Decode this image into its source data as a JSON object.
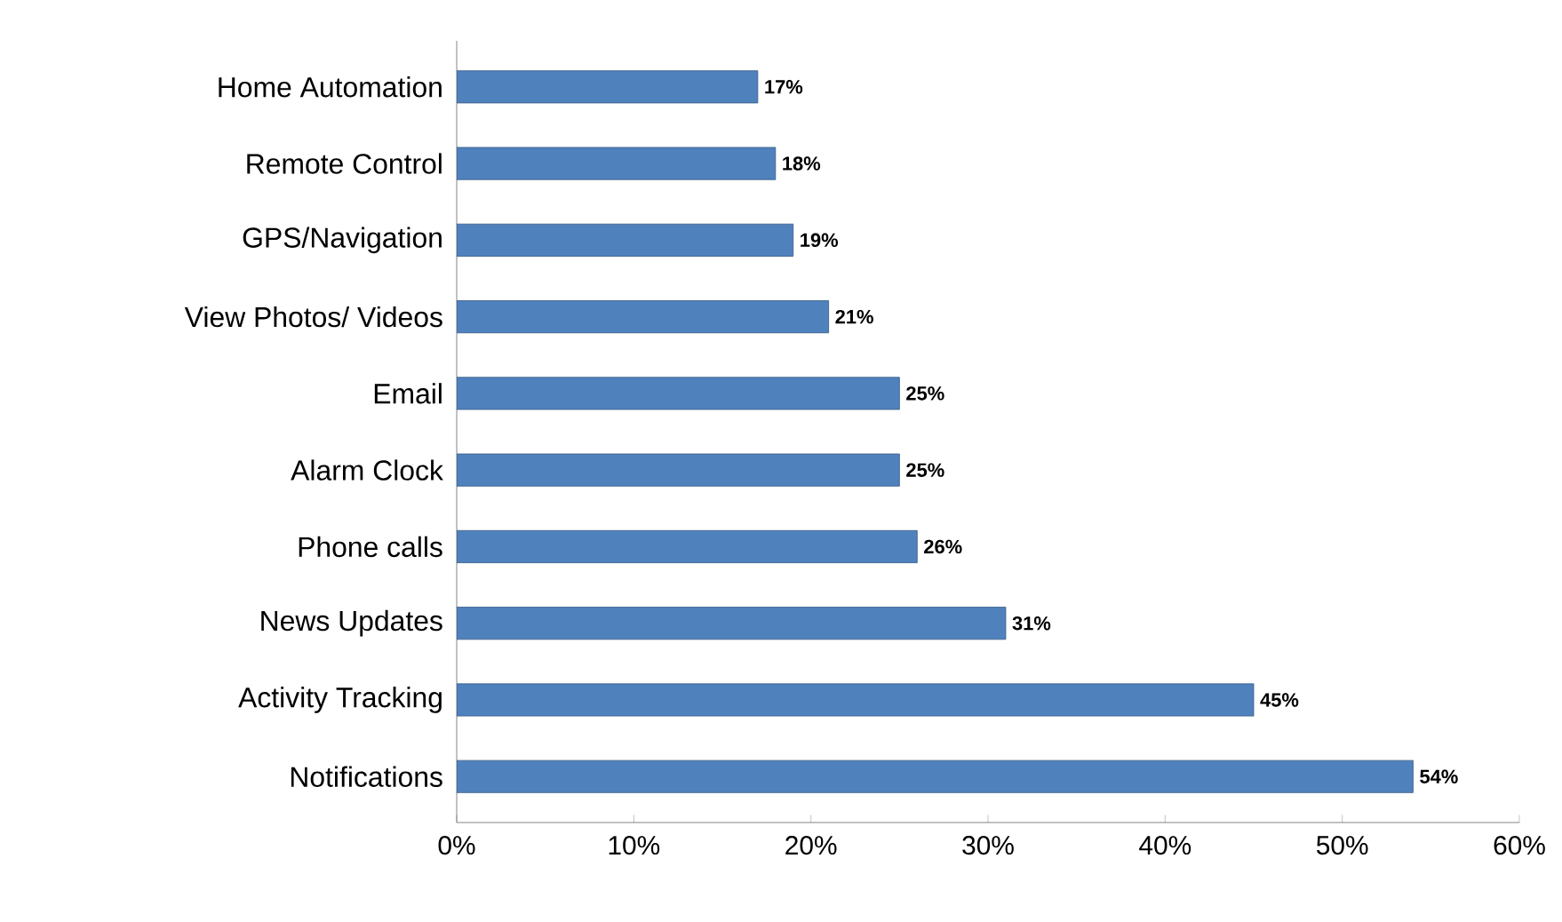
{
  "chart_data": {
    "type": "bar",
    "orientation": "horizontal",
    "categories": [
      "Home Automation",
      "Remote Control",
      "GPS/Navigation",
      "View Photos/ Videos",
      "Email",
      "Alarm Clock",
      "Phone calls",
      "News Updates",
      "Activity Tracking",
      "Notifications"
    ],
    "values": [
      17,
      18,
      19,
      21,
      25,
      25,
      26,
      31,
      45,
      54
    ],
    "value_labels": [
      "17%",
      "18%",
      "19%",
      "21%",
      "25%",
      "25%",
      "26%",
      "31%",
      "45%",
      "54%"
    ],
    "color": "#4f81bd",
    "xlim": [
      0,
      60
    ],
    "xticks": [
      {
        "value": 0,
        "label": "0%"
      },
      {
        "value": 10,
        "label": "10%"
      },
      {
        "value": 20,
        "label": "20%"
      },
      {
        "value": 30,
        "label": "30%"
      },
      {
        "value": 40,
        "label": "40%"
      },
      {
        "value": 50,
        "label": "50%"
      },
      {
        "value": 60,
        "label": "60%"
      }
    ]
  }
}
